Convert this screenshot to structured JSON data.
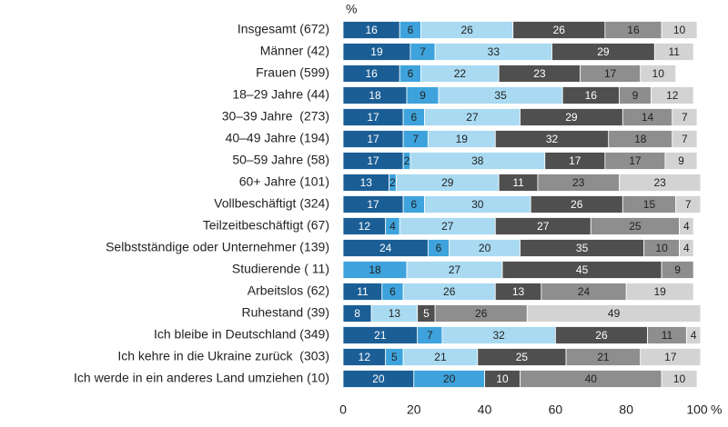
{
  "chart_data": {
    "type": "stacked-bar-horizontal",
    "unit": "%",
    "categories": [
      "Insgesamt (672)",
      "Männer (42)",
      "Frauen (599)",
      "18–29 Jahre (44)",
      "30–39 Jahre  (273)",
      "40–49 Jahre (194)",
      "50–59 Jahre (58)",
      "60+ Jahre (101)",
      "Vollbeschäftigt (324)",
      "Teilzeitbeschäftigt (67)",
      "Selbstständige oder Unternehmer (139)",
      "Studierende ( 11)",
      "Arbeitslos (62)",
      "Ruhestand (39)",
      "Ich bleibe in Deutschland (349)",
      "Ich kehre in die Ukraine zurück  (303)",
      "Ich werde in ein anderes Land umziehen (10)"
    ],
    "series": [
      {
        "color": "#1b5e95",
        "values": [
          16,
          19,
          16,
          18,
          17,
          17,
          17,
          13,
          17,
          12,
          24,
          null,
          11,
          8,
          21,
          12,
          20
        ]
      },
      {
        "color": "#3ea3dc",
        "values": [
          6,
          7,
          6,
          9,
          6,
          7,
          2,
          2,
          6,
          4,
          6,
          18,
          6,
          null,
          7,
          5,
          20
        ]
      },
      {
        "color": "#a9daf2",
        "values": [
          26,
          33,
          22,
          35,
          27,
          19,
          38,
          29,
          30,
          27,
          20,
          27,
          26,
          13,
          32,
          21,
          null
        ]
      },
      {
        "color": "#4f4f4f",
        "values": [
          26,
          29,
          23,
          16,
          29,
          32,
          17,
          11,
          26,
          27,
          35,
          45,
          13,
          5,
          26,
          25,
          10
        ]
      },
      {
        "color": "#8e8e8e",
        "values": [
          16,
          null,
          17,
          9,
          14,
          18,
          17,
          23,
          15,
          25,
          10,
          9,
          24,
          26,
          11,
          21,
          40
        ]
      },
      {
        "color": "#d3d3d3",
        "values": [
          10,
          11,
          10,
          12,
          7,
          7,
          9,
          23,
          7,
          4,
          4,
          null,
          19,
          49,
          4,
          17,
          10
        ]
      }
    ],
    "xlim": [
      0,
      100
    ],
    "xticks": [
      0,
      20,
      40,
      60,
      80,
      100
    ]
  }
}
